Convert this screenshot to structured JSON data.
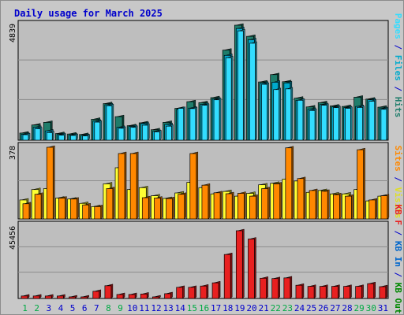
{
  "title": "Daily usage for March 2025",
  "colors": {
    "hits": "#1f7d6b",
    "files": "#00aacc",
    "pages": "#33ddff",
    "visits": "#ffff33",
    "sites": "#ff8800",
    "kb": "#e82020"
  },
  "chart_data": [
    {
      "type": "bar",
      "title": "Daily usage for March 2025",
      "ymax_label": "4839",
      "ylim": [
        0,
        4839
      ],
      "legend": [
        "Pages",
        "Files",
        "Hits"
      ],
      "categories": [
        "1",
        "2",
        "3",
        "4",
        "5",
        "6",
        "7",
        "8",
        "9",
        "10",
        "11",
        "12",
        "13",
        "14",
        "15",
        "16",
        "17",
        "18",
        "19",
        "20",
        "21",
        "22",
        "23",
        "24",
        "25",
        "26",
        "27",
        "28",
        "29",
        "30",
        "31"
      ],
      "series": [
        {
          "name": "Hits",
          "values": [
            300,
            640,
            750,
            280,
            260,
            240,
            880,
            1540,
            990,
            610,
            730,
            440,
            750,
            1340,
            1620,
            1580,
            1790,
            3790,
            4839,
            4370,
            2450,
            2760,
            2460,
            1770,
            1400,
            1580,
            1440,
            1420,
            1810,
            1730,
            1390
          ]
        },
        {
          "name": "Files",
          "values": [
            250,
            540,
            390,
            240,
            220,
            200,
            800,
            1490,
            540,
            580,
            700,
            370,
            660,
            1300,
            1350,
            1510,
            1730,
            3570,
            4700,
            4230,
            2400,
            2440,
            2410,
            1680,
            1300,
            1500,
            1400,
            1370,
            1420,
            1700,
            1330
          ]
        },
        {
          "name": "Pages",
          "values": [
            230,
            480,
            320,
            210,
            200,
            180,
            760,
            1450,
            500,
            540,
            630,
            350,
            590,
            1340,
            1330,
            1470,
            1700,
            3470,
            4600,
            4080,
            2350,
            2130,
            2160,
            1680,
            1250,
            1470,
            1370,
            1340,
            1380,
            1640,
            1300
          ]
        }
      ]
    },
    {
      "type": "bar",
      "ymax_label": "378",
      "ylim": [
        0,
        378
      ],
      "legend": [
        "Visits",
        "Sites"
      ],
      "categories": [
        "1",
        "2",
        "3",
        "4",
        "5",
        "6",
        "7",
        "8",
        "9",
        "10",
        "11",
        "12",
        "13",
        "14",
        "15",
        "16",
        "17",
        "18",
        "19",
        "20",
        "21",
        "22",
        "23",
        "24",
        "25",
        "26",
        "27",
        "28",
        "29",
        "30",
        "31"
      ],
      "series": [
        {
          "name": "Visits",
          "values": [
            100,
            155,
            160,
            110,
            105,
            82,
            65,
            185,
            270,
            155,
            165,
            122,
            108,
            137,
            193,
            165,
            132,
            145,
            120,
            135,
            180,
            188,
            210,
            200,
            140,
            150,
            132,
            132,
            155,
            95,
            120
          ]
        },
        {
          "name": "Sites",
          "values": [
            80,
            130,
            378,
            110,
            105,
            74,
            65,
            160,
            345,
            345,
            112,
            110,
            107,
            130,
            345,
            178,
            138,
            133,
            135,
            120,
            160,
            185,
            375,
            213,
            150,
            146,
            128,
            120,
            365,
            100,
            122
          ]
        }
      ]
    },
    {
      "type": "bar",
      "ymax_label": "45456",
      "ylim": [
        0,
        45456
      ],
      "legend": [
        "KB F",
        "KB In",
        "KB Out"
      ],
      "categories": [
        "1",
        "2",
        "3",
        "4",
        "5",
        "6",
        "7",
        "8",
        "9",
        "10",
        "11",
        "12",
        "13",
        "14",
        "15",
        "16",
        "17",
        "18",
        "19",
        "20",
        "21",
        "22",
        "23",
        "24",
        "25",
        "26",
        "27",
        "28",
        "29",
        "30",
        "31"
      ],
      "series": [
        {
          "name": "KB F",
          "values": [
            1550,
            1550,
            1550,
            1550,
            1000,
            1000,
            4500,
            8000,
            2500,
            2500,
            2800,
            1000,
            3000,
            7000,
            7000,
            7800,
            9800,
            27600,
            42500,
            37300,
            12700,
            12500,
            12900,
            8300,
            7600,
            7600,
            7600,
            7600,
            7600,
            9300,
            7400
          ]
        }
      ]
    }
  ],
  "side_labels": {
    "top": [
      {
        "text": "Pages",
        "color": "#33ddff"
      },
      {
        "text": "/",
        "color": "#0000cc"
      },
      {
        "text": "Files",
        "color": "#00aacc"
      },
      {
        "text": "/",
        "color": "#0000cc"
      },
      {
        "text": "Hits",
        "color": "#1f7d6b"
      }
    ],
    "middle": [
      {
        "text": "Sites",
        "color": "#ff8800"
      },
      {
        "text": "/",
        "color": "#0000cc"
      },
      {
        "text": "Visits",
        "color": "#e0e020"
      }
    ],
    "bottom": [
      {
        "text": "KB F",
        "color": "#e82020"
      },
      {
        "text": "/",
        "color": "#0000cc"
      },
      {
        "text": "KB In",
        "color": "#0066cc"
      },
      {
        "text": "/",
        "color": "#0000cc"
      },
      {
        "text": "KB Out",
        "color": "#008800"
      }
    ]
  },
  "weekend_days": [
    "1",
    "2",
    "8",
    "9",
    "15",
    "16",
    "22",
    "23",
    "29",
    "30"
  ],
  "day_colors": {
    "weekday": "#0000cc",
    "weekend": "#00aa44"
  }
}
